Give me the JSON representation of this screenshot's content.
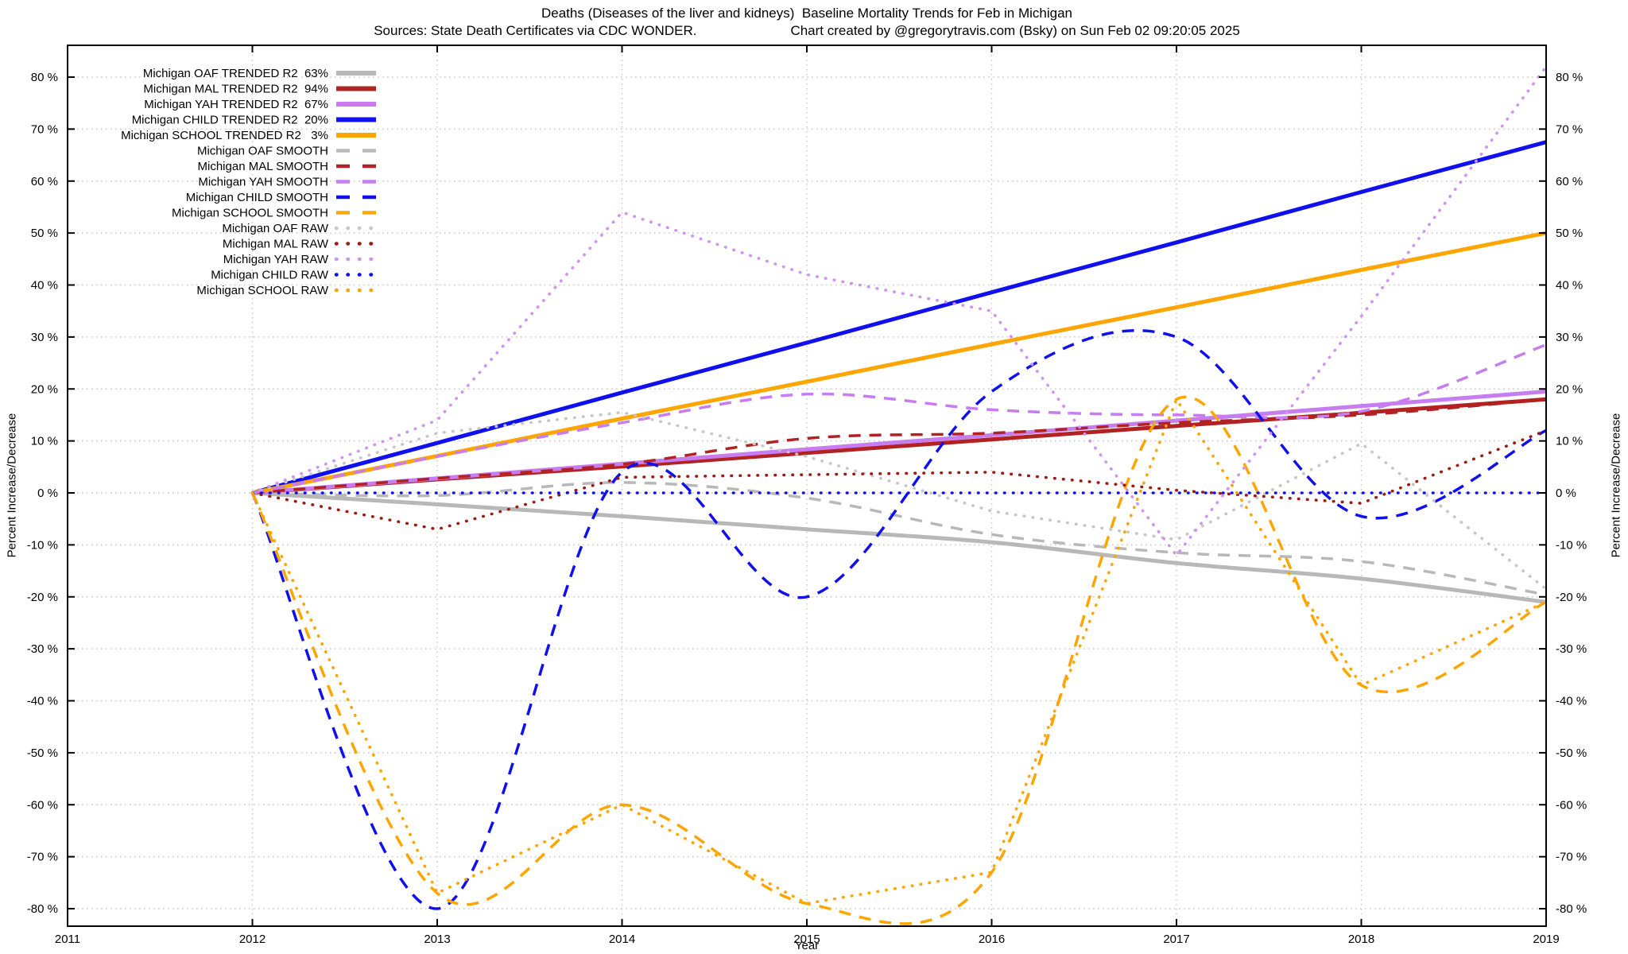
{
  "title": {
    "line1": "Deaths (Diseases of the liver and kidneys)  Baseline Mortality Trends for Feb in Michigan",
    "line2_left": "Sources: State Death Certificates via CDC WONDER.",
    "line2_right": "Chart created by @gregorytravis.com (Bsky) on Sun Feb 02 09:20:05 2025"
  },
  "axes": {
    "y_label_left": "Percent Increase/Decrease",
    "y_label_right": "Percent Increase/Decrease",
    "x_label": "Year",
    "y_min": -80,
    "y_max": 80,
    "x_min": 2011,
    "x_max": 2019,
    "y_ticks": [
      {
        "v": 80,
        "label": "80 %"
      },
      {
        "v": 70,
        "label": "70 %"
      },
      {
        "v": 60,
        "label": "60 %"
      },
      {
        "v": 50,
        "label": "50 %"
      },
      {
        "v": 40,
        "label": "40 %"
      },
      {
        "v": 30,
        "label": "30 %"
      },
      {
        "v": 20,
        "label": "20 %"
      },
      {
        "v": 10,
        "label": "10 %"
      },
      {
        "v": 0,
        "label": "0 %"
      },
      {
        "v": -10,
        "label": "-10 %"
      },
      {
        "v": -20,
        "label": "-20 %"
      },
      {
        "v": -30,
        "label": "-30 %"
      },
      {
        "v": -40,
        "label": "-40 %"
      },
      {
        "v": -50,
        "label": "-50 %"
      },
      {
        "v": -60,
        "label": "-60 %"
      },
      {
        "v": -70,
        "label": "-70 %"
      },
      {
        "v": -80,
        "label": "-80 %"
      }
    ],
    "x_ticks": [
      {
        "v": 2011,
        "label": "2011"
      },
      {
        "v": 2012,
        "label": "2012"
      },
      {
        "v": 2013,
        "label": "2013"
      },
      {
        "v": 2014,
        "label": "2014"
      },
      {
        "v": 2015,
        "label": "2015"
      },
      {
        "v": 2016,
        "label": "2016"
      },
      {
        "v": 2017,
        "label": "2017"
      },
      {
        "v": 2018,
        "label": "2018"
      },
      {
        "v": 2019,
        "label": "2019"
      }
    ]
  },
  "style": {
    "grid_color": "#c9c9c9",
    "border_color": "#000000",
    "text_color": "#000000",
    "background": "#ffffff"
  },
  "chart_data": {
    "type": "line",
    "grid": true,
    "legend_position": "top-left-inside",
    "x": [
      2012,
      2013,
      2014,
      2015,
      2016,
      2017,
      2018,
      2019
    ],
    "series": [
      {
        "id": "oaf-trended",
        "legend_label": "Michigan OAF TRENDED R2  63%",
        "color": "#b8b8b8",
        "style": "solid",
        "width": 5,
        "smooth": true,
        "values": [
          0,
          -2.2,
          -4.5,
          -7,
          -9.5,
          -13.5,
          -16.5,
          -21
        ]
      },
      {
        "id": "mal-trended",
        "legend_label": "Michigan MAL TRENDED R2  94%",
        "color": "#b22222",
        "style": "solid",
        "width": 5,
        "smooth": false,
        "values": [
          0,
          2.6,
          5.1,
          7.7,
          10.3,
          12.9,
          15.4,
          18
        ]
      },
      {
        "id": "yah-trended",
        "legend_label": "Michigan YAH TRENDED R2  67%",
        "color": "#c77cf1",
        "style": "solid",
        "width": 5,
        "smooth": false,
        "values": [
          0,
          2.8,
          5.6,
          8.4,
          11.1,
          13.9,
          16.7,
          19.5
        ]
      },
      {
        "id": "child-trended",
        "legend_label": "Michigan CHILD TRENDED R2  20%",
        "color": "#1010ee",
        "style": "solid",
        "width": 5,
        "smooth": false,
        "values": [
          0,
          9.6,
          19.3,
          28.9,
          38.6,
          48.2,
          57.9,
          67.5
        ]
      },
      {
        "id": "school-trended",
        "legend_label": "Michigan SCHOOL TRENDED R2   3%",
        "color": "#ffa500",
        "style": "solid",
        "width": 5,
        "smooth": false,
        "values": [
          0,
          7.1,
          14.3,
          21.4,
          28.6,
          35.7,
          42.9,
          50
        ]
      },
      {
        "id": "oaf-smooth",
        "legend_label": "Michigan OAF SMOOTH",
        "color": "#b8b8b8",
        "style": "dashed",
        "width": 3.5,
        "smooth": true,
        "values": [
          0,
          -0.5,
          2,
          -1,
          -8,
          -11.5,
          -13.2,
          -19.6
        ]
      },
      {
        "id": "mal-smooth",
        "legend_label": "Michigan MAL SMOOTH",
        "color": "#b22222",
        "style": "dashed",
        "width": 3.5,
        "smooth": true,
        "values": [
          0,
          2.8,
          5.5,
          10.5,
          11.5,
          13.5,
          15,
          18
        ]
      },
      {
        "id": "yah-smooth",
        "legend_label": "Michigan YAH SMOOTH",
        "color": "#c77cf1",
        "style": "dashed",
        "width": 3.5,
        "smooth": true,
        "values": [
          0,
          7,
          13.5,
          19,
          16,
          15,
          15.7,
          28.5
        ]
      },
      {
        "id": "child-smooth",
        "legend_label": "Michigan CHILD SMOOTH",
        "color": "#1010ee",
        "style": "dashed",
        "width": 3.5,
        "smooth": true,
        "values": [
          0,
          -80,
          4,
          -20,
          19.5,
          30,
          -4.5,
          12
        ]
      },
      {
        "id": "school-smooth",
        "legend_label": "Michigan SCHOOL SMOOTH",
        "color": "#ffa500",
        "style": "dashed",
        "width": 3.5,
        "smooth": true,
        "values": [
          0,
          -77,
          -60,
          -79,
          -73,
          18,
          -37,
          -21
        ]
      },
      {
        "id": "oaf-raw",
        "legend_label": "Michigan OAF RAW",
        "color": "#c6c6c6",
        "style": "dotted",
        "width": 3.6,
        "smooth": false,
        "values": [
          0,
          11.5,
          15.5,
          7,
          -3.5,
          -9,
          9.5,
          -18.5
        ]
      },
      {
        "id": "mal-raw",
        "legend_label": "Michigan MAL RAW",
        "color": "#9b1c13",
        "style": "dotted",
        "width": 3.6,
        "smooth": false,
        "values": [
          0,
          -7,
          3,
          3.5,
          4,
          0.5,
          -2,
          12
        ]
      },
      {
        "id": "yah-raw",
        "legend_label": "Michigan YAH RAW",
        "color": "#cf92f5",
        "style": "dotted",
        "width": 3.6,
        "smooth": false,
        "values": [
          0,
          14,
          54,
          42,
          35,
          -12,
          34,
          82
        ]
      },
      {
        "id": "child-raw",
        "legend_label": "Michigan CHILD RAW",
        "color": "#1010ee",
        "style": "dotted",
        "width": 3.6,
        "smooth": false,
        "values": [
          0,
          0,
          0,
          0,
          0,
          0,
          0,
          0
        ]
      },
      {
        "id": "school-raw",
        "legend_label": "Michigan SCHOOL RAW",
        "color": "#ffa500",
        "style": "dotted",
        "width": 3.6,
        "smooth": false,
        "values": [
          0,
          -77,
          -60,
          -79,
          -73,
          18,
          -37,
          -21
        ]
      }
    ]
  }
}
